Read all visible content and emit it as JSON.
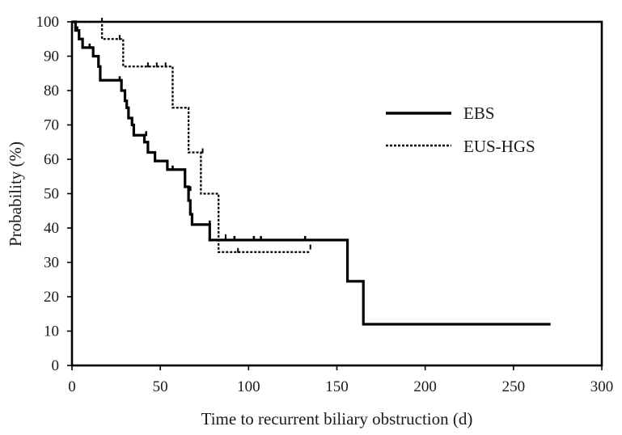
{
  "chart_data": {
    "type": "line",
    "subtype": "kaplan-meier-step",
    "title": "",
    "xlabel": "Time to recurrent biliary obstruction (d)",
    "ylabel": "Probability (%)",
    "xlim": [
      0,
      300
    ],
    "ylim": [
      0,
      100
    ],
    "xticks": [
      "0",
      "50",
      "100",
      "150",
      "200",
      "250",
      "300"
    ],
    "yticks": [
      "0",
      "10",
      "20",
      "30",
      "40",
      "50",
      "60",
      "70",
      "80",
      "90",
      "100"
    ],
    "grid": false,
    "legend_position": "right",
    "series": [
      {
        "name": "EBS",
        "style": "solid",
        "color": "#000000",
        "steps": [
          [
            0,
            100
          ],
          [
            2,
            97.5
          ],
          [
            4,
            95
          ],
          [
            6,
            92.5
          ],
          [
            12,
            90
          ],
          [
            15,
            87
          ],
          [
            16,
            83
          ],
          [
            28,
            80
          ],
          [
            30,
            77
          ],
          [
            31,
            75
          ],
          [
            32,
            72
          ],
          [
            34,
            70
          ],
          [
            35,
            67
          ],
          [
            41,
            65
          ],
          [
            43,
            62
          ],
          [
            47,
            59.5
          ],
          [
            54,
            57
          ],
          [
            64,
            52
          ],
          [
            66,
            48
          ],
          [
            67,
            44
          ],
          [
            68,
            41
          ],
          [
            78,
            36.5
          ],
          [
            156,
            24.5
          ],
          [
            165,
            12
          ],
          [
            271,
            12
          ]
        ],
        "censored": [
          [
            3,
            97.5
          ],
          [
            10,
            92.5
          ],
          [
            27,
            83
          ],
          [
            42,
            67
          ],
          [
            57,
            57
          ],
          [
            67,
            51
          ],
          [
            78,
            41
          ],
          [
            92,
            36.5
          ],
          [
            103,
            36.5
          ],
          [
            107,
            36.5
          ],
          [
            132,
            36.5
          ]
        ]
      },
      {
        "name": "EUS-HGS",
        "style": "dashed",
        "color": "#000000",
        "steps": [
          [
            0,
            100
          ],
          [
            17,
            95
          ],
          [
            29,
            87
          ],
          [
            57,
            75
          ],
          [
            66,
            62
          ],
          [
            73,
            50
          ],
          [
            83,
            33
          ],
          [
            135,
            33
          ]
        ],
        "censored": [
          [
            17,
            100
          ],
          [
            27,
            95
          ],
          [
            43,
            87
          ],
          [
            48,
            87
          ],
          [
            53,
            87
          ],
          [
            74,
            62
          ],
          [
            87,
            37
          ],
          [
            94,
            33
          ],
          [
            135,
            34
          ]
        ]
      }
    ]
  }
}
